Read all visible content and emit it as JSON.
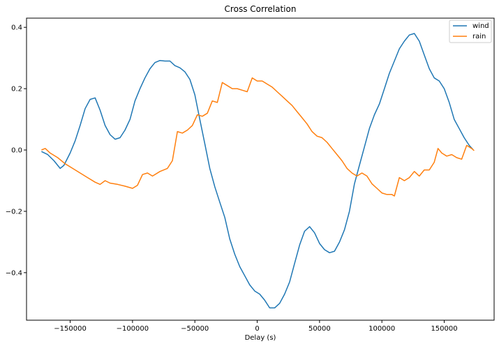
{
  "chart_data": {
    "type": "line",
    "title": "Cross Correlation",
    "xlabel": "Delay (s)",
    "ylabel": "",
    "xlim": [
      -185000,
      190000
    ],
    "ylim": [
      -0.555,
      0.43
    ],
    "x_ticks": [
      -150000,
      -100000,
      -50000,
      0,
      50000,
      100000,
      150000
    ],
    "x_tick_labels": [
      "−150000",
      "−100000",
      "−50000",
      "0",
      "50000",
      "100000",
      "150000"
    ],
    "y_ticks": [
      -0.4,
      -0.2,
      0.0,
      0.2,
      0.4
    ],
    "y_tick_labels": [
      "−0.4",
      "−0.2",
      "0.0",
      "0.2",
      "0.4"
    ],
    "grid": false,
    "legend_position": "top-right",
    "series": [
      {
        "name": "wind",
        "color": "#1f77b4",
        "points": [
          [
            -173000,
            -0.005
          ],
          [
            -168000,
            -0.015
          ],
          [
            -163000,
            -0.035
          ],
          [
            -158000,
            -0.06
          ],
          [
            -155000,
            -0.05
          ],
          [
            -150000,
            -0.01
          ],
          [
            -146000,
            0.03
          ],
          [
            -142000,
            0.08
          ],
          [
            -138000,
            0.135
          ],
          [
            -134000,
            0.165
          ],
          [
            -130000,
            0.17
          ],
          [
            -126000,
            0.13
          ],
          [
            -122000,
            0.08
          ],
          [
            -118000,
            0.05
          ],
          [
            -114000,
            0.035
          ],
          [
            -110000,
            0.04
          ],
          [
            -106000,
            0.065
          ],
          [
            -102000,
            0.1
          ],
          [
            -98000,
            0.16
          ],
          [
            -94000,
            0.2
          ],
          [
            -90000,
            0.235
          ],
          [
            -86000,
            0.265
          ],
          [
            -82000,
            0.285
          ],
          [
            -78000,
            0.292
          ],
          [
            -74000,
            0.29
          ],
          [
            -70000,
            0.29
          ],
          [
            -66000,
            0.275
          ],
          [
            -62000,
            0.268
          ],
          [
            -58000,
            0.255
          ],
          [
            -54000,
            0.23
          ],
          [
            -50000,
            0.18
          ],
          [
            -46000,
            0.1
          ],
          [
            -42000,
            0.02
          ],
          [
            -38000,
            -0.06
          ],
          [
            -34000,
            -0.12
          ],
          [
            -30000,
            -0.17
          ],
          [
            -26000,
            -0.22
          ],
          [
            -22000,
            -0.29
          ],
          [
            -18000,
            -0.34
          ],
          [
            -14000,
            -0.38
          ],
          [
            -10000,
            -0.41
          ],
          [
            -6000,
            -0.44
          ],
          [
            -2000,
            -0.46
          ],
          [
            2000,
            -0.47
          ],
          [
            6000,
            -0.49
          ],
          [
            10000,
            -0.515
          ],
          [
            14000,
            -0.515
          ],
          [
            18000,
            -0.5
          ],
          [
            22000,
            -0.47
          ],
          [
            26000,
            -0.43
          ],
          [
            30000,
            -0.37
          ],
          [
            34000,
            -0.31
          ],
          [
            38000,
            -0.265
          ],
          [
            42000,
            -0.25
          ],
          [
            46000,
            -0.27
          ],
          [
            50000,
            -0.305
          ],
          [
            54000,
            -0.325
          ],
          [
            58000,
            -0.335
          ],
          [
            62000,
            -0.33
          ],
          [
            66000,
            -0.3
          ],
          [
            70000,
            -0.26
          ],
          [
            74000,
            -0.2
          ],
          [
            78000,
            -0.11
          ],
          [
            82000,
            -0.05
          ],
          [
            86000,
            0.01
          ],
          [
            90000,
            0.07
          ],
          [
            94000,
            0.115
          ],
          [
            98000,
            0.15
          ],
          [
            102000,
            0.2
          ],
          [
            106000,
            0.25
          ],
          [
            110000,
            0.29
          ],
          [
            114000,
            0.33
          ],
          [
            118000,
            0.355
          ],
          [
            122000,
            0.375
          ],
          [
            126000,
            0.38
          ],
          [
            130000,
            0.355
          ],
          [
            134000,
            0.31
          ],
          [
            138000,
            0.265
          ],
          [
            142000,
            0.235
          ],
          [
            146000,
            0.225
          ],
          [
            150000,
            0.2
          ],
          [
            154000,
            0.155
          ],
          [
            158000,
            0.1
          ],
          [
            162000,
            0.07
          ],
          [
            166000,
            0.04
          ],
          [
            170000,
            0.015
          ],
          [
            173000,
            0.002
          ]
        ]
      },
      {
        "name": "rain",
        "color": "#ff7f0e",
        "points": [
          [
            -173000,
            0.0
          ],
          [
            -170000,
            0.005
          ],
          [
            -166000,
            -0.01
          ],
          [
            -160000,
            -0.025
          ],
          [
            -154000,
            -0.045
          ],
          [
            -148000,
            -0.06
          ],
          [
            -142000,
            -0.075
          ],
          [
            -136000,
            -0.09
          ],
          [
            -130000,
            -0.105
          ],
          [
            -126000,
            -0.112
          ],
          [
            -122000,
            -0.1
          ],
          [
            -118000,
            -0.108
          ],
          [
            -112000,
            -0.112
          ],
          [
            -106000,
            -0.118
          ],
          [
            -100000,
            -0.125
          ],
          [
            -96000,
            -0.115
          ],
          [
            -92000,
            -0.08
          ],
          [
            -88000,
            -0.075
          ],
          [
            -84000,
            -0.085
          ],
          [
            -78000,
            -0.07
          ],
          [
            -72000,
            -0.06
          ],
          [
            -68000,
            -0.035
          ],
          [
            -64000,
            0.06
          ],
          [
            -60000,
            0.055
          ],
          [
            -56000,
            0.065
          ],
          [
            -52000,
            0.08
          ],
          [
            -48000,
            0.115
          ],
          [
            -44000,
            0.11
          ],
          [
            -40000,
            0.12
          ],
          [
            -36000,
            0.16
          ],
          [
            -32000,
            0.155
          ],
          [
            -28000,
            0.22
          ],
          [
            -24000,
            0.21
          ],
          [
            -20000,
            0.2
          ],
          [
            -16000,
            0.2
          ],
          [
            -12000,
            0.195
          ],
          [
            -8000,
            0.19
          ],
          [
            -4000,
            0.235
          ],
          [
            0,
            0.225
          ],
          [
            4000,
            0.225
          ],
          [
            8000,
            0.215
          ],
          [
            12000,
            0.205
          ],
          [
            16000,
            0.19
          ],
          [
            20000,
            0.175
          ],
          [
            24000,
            0.16
          ],
          [
            28000,
            0.145
          ],
          [
            32000,
            0.125
          ],
          [
            36000,
            0.105
          ],
          [
            40000,
            0.085
          ],
          [
            44000,
            0.06
          ],
          [
            48000,
            0.045
          ],
          [
            52000,
            0.04
          ],
          [
            56000,
            0.025
          ],
          [
            60000,
            0.005
          ],
          [
            64000,
            -0.015
          ],
          [
            68000,
            -0.035
          ],
          [
            72000,
            -0.06
          ],
          [
            76000,
            -0.075
          ],
          [
            80000,
            -0.085
          ],
          [
            84000,
            -0.075
          ],
          [
            88000,
            -0.085
          ],
          [
            92000,
            -0.11
          ],
          [
            96000,
            -0.125
          ],
          [
            100000,
            -0.14
          ],
          [
            104000,
            -0.145
          ],
          [
            108000,
            -0.145
          ],
          [
            110000,
            -0.15
          ],
          [
            114000,
            -0.09
          ],
          [
            118000,
            -0.1
          ],
          [
            122000,
            -0.09
          ],
          [
            126000,
            -0.07
          ],
          [
            130000,
            -0.085
          ],
          [
            134000,
            -0.065
          ],
          [
            138000,
            -0.065
          ],
          [
            142000,
            -0.04
          ],
          [
            145000,
            0.005
          ],
          [
            148000,
            -0.01
          ],
          [
            152000,
            -0.02
          ],
          [
            156000,
            -0.015
          ],
          [
            160000,
            -0.025
          ],
          [
            164000,
            -0.03
          ],
          [
            168000,
            0.015
          ],
          [
            172000,
            0.005
          ],
          [
            174000,
            -0.002
          ]
        ]
      }
    ]
  }
}
